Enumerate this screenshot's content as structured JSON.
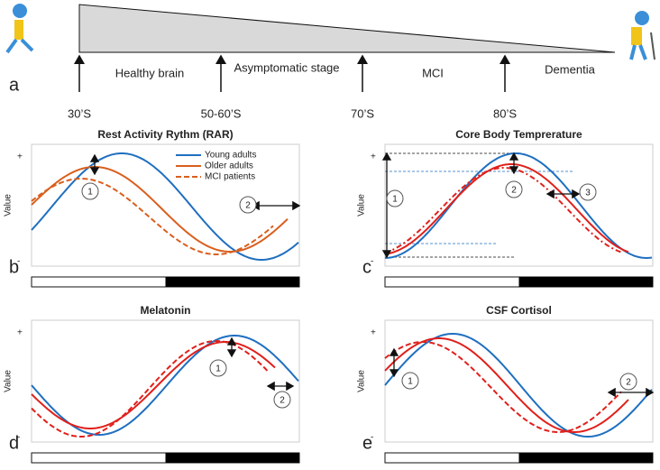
{
  "panel_a": {
    "label": "a",
    "stages": [
      "Healthy brain",
      "Asymptomatic stage",
      "MCI",
      "Dementia"
    ],
    "ages": [
      "30’S",
      "50-60’S",
      "70’S",
      "80’S"
    ]
  },
  "panels": [
    {
      "label": "b",
      "title": "Rest Activity Rythm (RAR)",
      "y_label": "Value",
      "plus": "+",
      "minus": "-",
      "legend": [
        "Young adults",
        "Older adults",
        "MCI patients"
      ],
      "markers": [
        "1",
        "2"
      ]
    },
    {
      "label": "c",
      "title": "Core Body Temprerature",
      "y_label": "Value",
      "plus": "+",
      "minus": "-",
      "markers": [
        "1",
        "2",
        "3"
      ]
    },
    {
      "label": "d",
      "title": "Melatonin",
      "y_label": "Value",
      "plus": "+",
      "minus": "-",
      "markers": [
        "1",
        "2"
      ]
    },
    {
      "label": "e",
      "title": "CSF Cortisol",
      "y_label": "Value",
      "plus": "+",
      "minus": "-",
      "markers": [
        "1",
        "2"
      ]
    }
  ]
}
